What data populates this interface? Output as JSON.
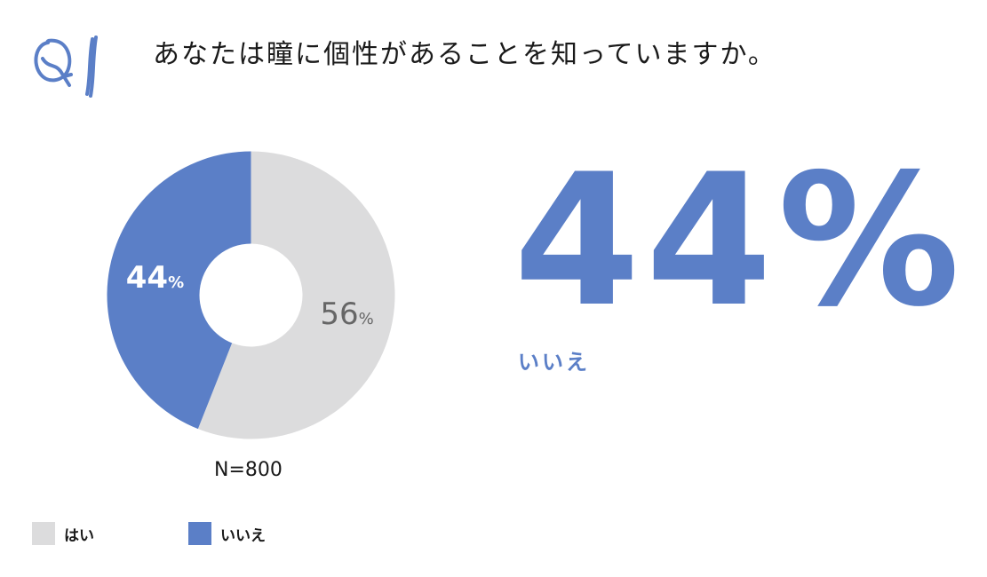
{
  "question": "あなたは瞳に個性があることを知っていますか。",
  "q_badge": "Q1",
  "colors": {
    "accent": "#5b7fc7",
    "gray": "#dcdcdd",
    "muted_text": "#666666"
  },
  "chart_data": {
    "type": "pie",
    "variant": "donut",
    "categories": [
      "はい",
      "いいえ"
    ],
    "values": [
      56,
      44
    ],
    "value_labels": [
      "56",
      "44"
    ],
    "unit": "%",
    "colors": [
      "#dcdcdd",
      "#5b7fc7"
    ],
    "sample_note": "N=800",
    "legend_position": "bottom-left"
  },
  "highlight": {
    "value": "44%",
    "label": "いいえ"
  },
  "legend": [
    {
      "label": "はい",
      "color": "#dcdcdd"
    },
    {
      "label": "いいえ",
      "color": "#5b7fc7"
    }
  ]
}
